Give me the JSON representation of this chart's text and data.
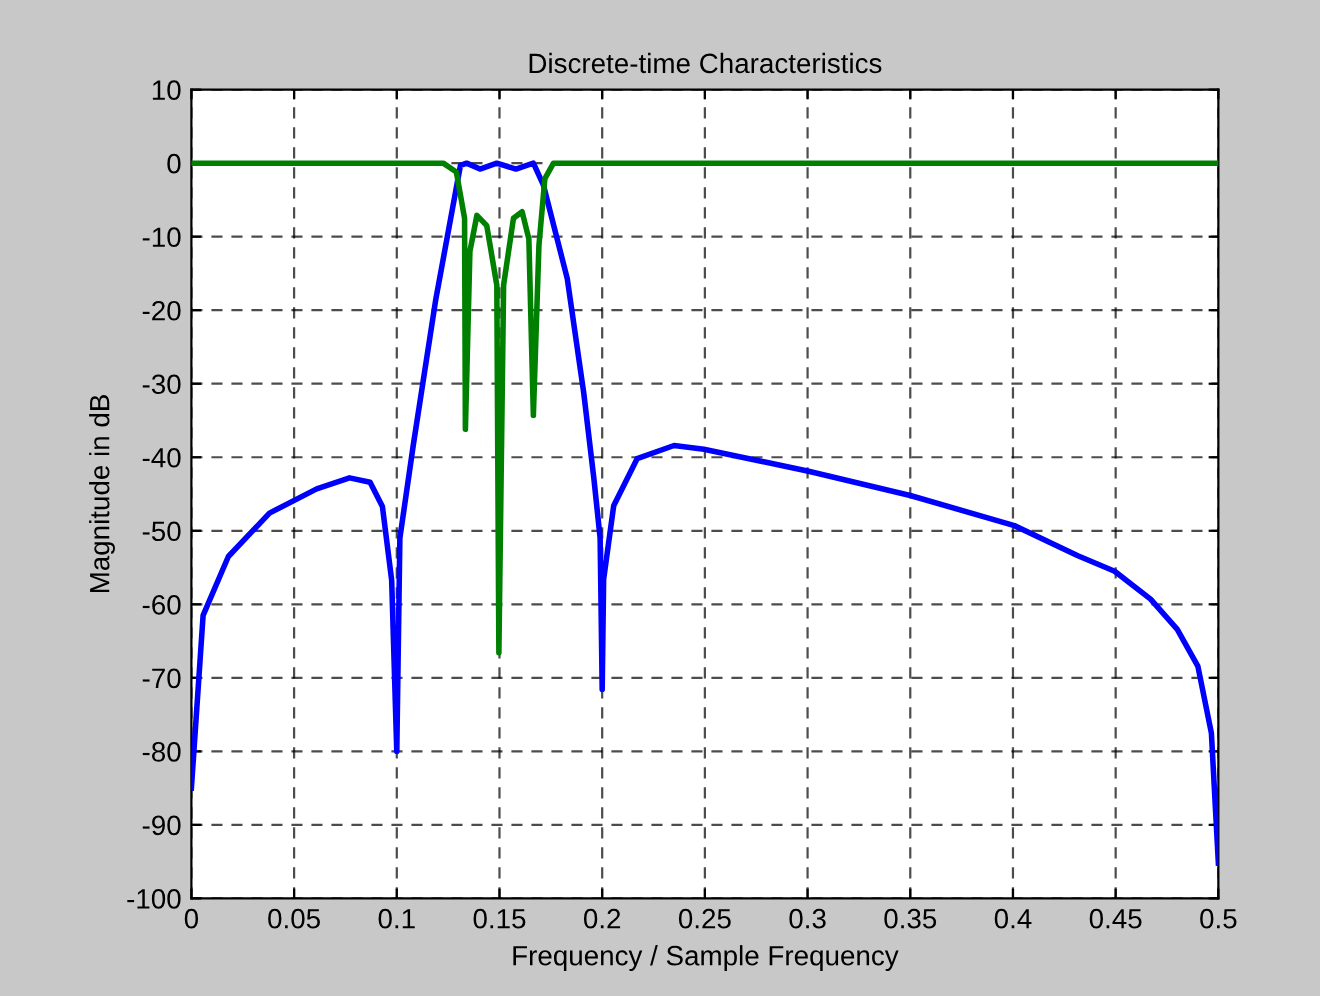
{
  "chart_data": {
    "type": "line",
    "title": "Discrete-time Characteristics",
    "xlabel": "Frequency / Sample Frequency",
    "ylabel": "Magnitude in dB",
    "series": [
      {
        "color": "#0000ff",
        "x": [
          0,
          0.0057,
          0.018,
          0.038,
          0.061,
          0.077,
          0.087,
          0.093,
          0.0975,
          0.1,
          0.1015,
          0.108,
          0.119,
          0.131,
          0.134,
          0.1405,
          0.1487,
          0.158,
          0.1665,
          0.1714,
          0.183,
          0.191,
          0.196,
          0.199,
          0.2,
          0.2007,
          0.2056,
          0.217,
          0.235,
          0.2495,
          0.3005,
          0.35,
          0.4007,
          0.4316,
          0.4495,
          0.467,
          0.48,
          0.49,
          0.4966,
          0.5
        ],
        "values": [
          -85,
          -61.5,
          -53.5,
          -47.6,
          -44.3,
          -42.8,
          -43.4,
          -46.7,
          -56.7,
          -80,
          -51,
          -38.4,
          -18.5,
          -0.3,
          0,
          -0.8,
          0,
          -0.8,
          0,
          -3,
          -15.7,
          -31.2,
          -43,
          -51,
          -71.6,
          -56.6,
          -46.6,
          -40.2,
          -38.4,
          -38.9,
          -41.9,
          -45.2,
          -49.3,
          -53.4,
          -55.5,
          -59.3,
          -63.4,
          -68.4,
          -77.5,
          -95.2
        ]
      },
      {
        "color": "#008000",
        "x": [
          0,
          0.1226,
          0.129,
          0.133,
          0.1334,
          0.1356,
          0.139,
          0.1438,
          0.1487,
          0.1497,
          0.152,
          0.1568,
          0.161,
          0.1643,
          0.1665,
          0.1692,
          0.1721,
          0.1763,
          0.5
        ],
        "values": [
          0,
          0,
          -1.2,
          -7.5,
          -36.2,
          -12,
          -7.1,
          -8.5,
          -16.6,
          -66.6,
          -16.6,
          -7.5,
          -6.6,
          -10.3,
          -34.3,
          -11.2,
          -2.1,
          0,
          0
        ]
      }
    ],
    "xlim": [
      0,
      0.5
    ],
    "xticks": [
      0,
      0.05,
      0.1,
      0.15,
      0.2,
      0.25,
      0.3,
      0.35,
      0.4,
      0.45,
      0.5
    ],
    "ylim": [
      -100,
      10
    ],
    "yticks": [
      10,
      0,
      -10,
      -20,
      -30,
      -40,
      -50,
      -60,
      -70,
      -80,
      -90,
      -100
    ],
    "grid": true,
    "line_style": "solid",
    "marker": "none"
  }
}
